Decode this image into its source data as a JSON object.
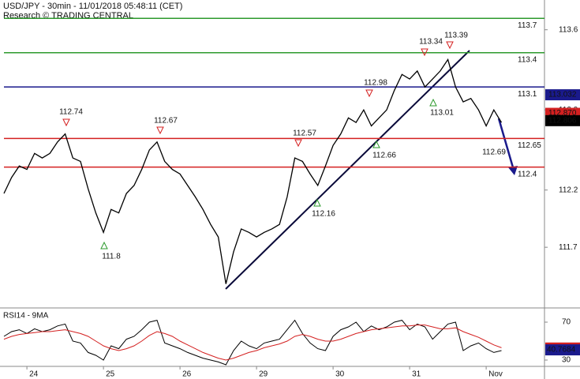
{
  "chart_data": {
    "type": "line",
    "title": "USD/JPY - 30min - 11/01/2018 05:48:11 (CET)",
    "subtitle": "Research © TRADING CENTRAL",
    "categories": [
      null,
      null,
      null,
      "24",
      null,
      null,
      null,
      null,
      null,
      null,
      null,
      null,
      null,
      "25",
      null,
      null,
      null,
      null,
      null,
      null,
      null,
      null,
      null,
      "26",
      null,
      null,
      null,
      null,
      null,
      null,
      null,
      null,
      null,
      "29",
      null,
      null,
      null,
      null,
      null,
      null,
      null,
      null,
      null,
      "30",
      null,
      null,
      null,
      null,
      null,
      null,
      null,
      null,
      null,
      "31",
      null,
      null,
      null,
      null,
      null,
      null,
      null,
      null,
      null,
      "Nov",
      null,
      null
    ],
    "series": [
      {
        "color": "#000000",
        "values": [
          112.17,
          112.31,
          112.41,
          112.38,
          112.52,
          112.48,
          112.52,
          112.62,
          112.69,
          112.48,
          112.45,
          112.21,
          112.0,
          111.83,
          112.03,
          112.0,
          112.17,
          112.24,
          112.38,
          112.55,
          112.62,
          112.45,
          112.38,
          112.34,
          112.24,
          112.14,
          112.03,
          111.9,
          111.79,
          111.38,
          111.66,
          111.86,
          111.83,
          111.79,
          111.83,
          111.86,
          111.9,
          112.14,
          112.48,
          112.45,
          112.34,
          112.24,
          112.41,
          112.59,
          112.69,
          112.83,
          112.79,
          112.9,
          112.76,
          112.83,
          112.9,
          113.07,
          113.21,
          113.17,
          113.24,
          113.1,
          113.17,
          113.24,
          113.34,
          113.1,
          112.97,
          113.0,
          112.9,
          112.76,
          112.9,
          112.79
        ]
      }
    ],
    "ylim": [
      111.17,
      113.86
    ],
    "yticks": [
      113.6,
      112.9,
      112.2,
      111.7
    ],
    "levels": [
      {
        "value": 113.7,
        "color": "#2e9a2e"
      },
      {
        "value": 113.4,
        "color": "#2e9a2e"
      },
      {
        "value": 113.1,
        "color": "#1a1a8c"
      },
      {
        "value": 112.65,
        "color": "#d42020"
      },
      {
        "value": 112.4,
        "color": "#d42020"
      }
    ],
    "price_tags": [
      {
        "value": 113.032,
        "color": "#1a1a8c"
      },
      {
        "value": {
          "value": 112.87,
          "label": "112.870"
        },
        "color": "#d42020"
      },
      {
        "value": {
          "value": 112.806,
          "label": "112.806"
        },
        "color": "#000000"
      }
    ],
    "annotations": [
      112.74,
      112.67,
      112.57,
      112.98,
      113.34,
      113.39,
      111.8,
      112.16,
      112.66,
      113.01,
      112.69
    ],
    "rsi": {
      "title": "RSI14 - 9MA",
      "ylim": [
        22.5,
        82.5
      ],
      "yticks": [
        70,
        30
      ],
      "series": [
        {
          "color": "#000000",
          "values": [
            55,
            60,
            62,
            58,
            63,
            60,
            62,
            66,
            68,
            50,
            48,
            38,
            35,
            30,
            45,
            42,
            52,
            55,
            62,
            70,
            72,
            48,
            45,
            42,
            38,
            35,
            32,
            30,
            28,
            25,
            40,
            50,
            45,
            42,
            48,
            50,
            52,
            62,
            72,
            58,
            48,
            42,
            40,
            55,
            62,
            65,
            70,
            60,
            66,
            62,
            65,
            70,
            72,
            62,
            68,
            65,
            52,
            60,
            68,
            70,
            40,
            45,
            48,
            42,
            38,
            40
          ]
        },
        {
          "color": "#d42020",
          "values": [
            52,
            55,
            57,
            58,
            59,
            60,
            60,
            61,
            62,
            60,
            58,
            55,
            50,
            45,
            42,
            40,
            42,
            45,
            50,
            56,
            60,
            58,
            55,
            50,
            46,
            42,
            38,
            35,
            32,
            30,
            32,
            35,
            38,
            40,
            43,
            45,
            47,
            50,
            55,
            57,
            55,
            52,
            50,
            50,
            52,
            55,
            58,
            60,
            62,
            63,
            64,
            65,
            66,
            66,
            67,
            67,
            65,
            63,
            63,
            64,
            60,
            57,
            54,
            50,
            46,
            43
          ]
        }
      ],
      "tags": [
        {
          "value": 42.6904,
          "color": "#d42020"
        },
        {
          "value": 40.7684,
          "color": "#1a1a8c"
        }
      ]
    }
  }
}
